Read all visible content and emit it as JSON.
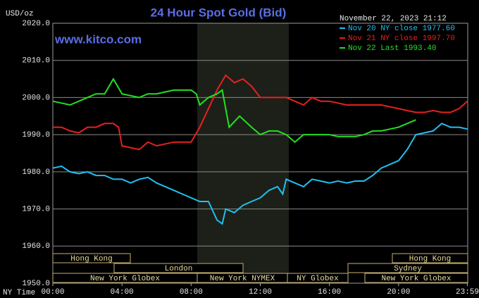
{
  "chart_data": {
    "type": "line",
    "title": "24 Hour Spot Gold (Bid)",
    "y_label": "USD/oz",
    "x_label": "NY Time",
    "watermark": "www.kitco.com",
    "timestamp": "November 22, 2023 21:12",
    "xlim": [
      0,
      24
    ],
    "ylim": [
      1950,
      2020
    ],
    "xticks": [
      {
        "value": 0,
        "label": "00:00"
      },
      {
        "value": 4,
        "label": "04:00"
      },
      {
        "value": 8,
        "label": "08:00"
      },
      {
        "value": 12,
        "label": "12:00"
      },
      {
        "value": 16,
        "label": "16:00"
      },
      {
        "value": 20,
        "label": "20:00"
      },
      {
        "value": 23.98,
        "label": "23:59"
      }
    ],
    "yticks": [
      {
        "value": 1950,
        "label": "1950.0"
      },
      {
        "value": 1960,
        "label": "1960.0"
      },
      {
        "value": 1970,
        "label": "1970.0"
      },
      {
        "value": 1980,
        "label": "1980.0"
      },
      {
        "value": 1990,
        "label": "1990.0"
      },
      {
        "value": 2000,
        "label": "2000.0"
      },
      {
        "value": 2010,
        "label": "2010.0"
      },
      {
        "value": 2020,
        "label": "2020.0"
      }
    ],
    "grid": true,
    "series": [
      {
        "name": "Nov 20 NY close 1977.60",
        "color": "#22bff0",
        "x": [
          0,
          0.5,
          1,
          1.5,
          2,
          2.5,
          3,
          3.5,
          4,
          4.5,
          5,
          5.5,
          6,
          6.5,
          7,
          7.5,
          8,
          8.5,
          9,
          9.5,
          9.8,
          10,
          10.5,
          11,
          11.5,
          12,
          12.5,
          13,
          13.3,
          13.5,
          14,
          14.5,
          15,
          15.5,
          16,
          16.5,
          17,
          17.5,
          18,
          18.5,
          19,
          19.5,
          20,
          20.5,
          21,
          21.5,
          22,
          22.5,
          23,
          23.5,
          23.98
        ],
        "values": [
          1981,
          1981.5,
          1980,
          1979.5,
          1980,
          1979,
          1979,
          1978,
          1978,
          1977,
          1978,
          1978.5,
          1977,
          1976,
          1975,
          1974,
          1973,
          1972,
          1972,
          1967,
          1966,
          1970,
          1969,
          1971,
          1972,
          1973,
          1975,
          1976,
          1974,
          1978,
          1977,
          1976,
          1978,
          1977.5,
          1977,
          1977.5,
          1977,
          1977.5,
          1977.5,
          1979,
          1981,
          1982,
          1983,
          1986,
          1990,
          1990.5,
          1991,
          1993,
          1992,
          1992,
          1991.5
        ]
      },
      {
        "name": "Nov 21 NY close 1997.70",
        "color": "#e62020",
        "x": [
          0,
          0.5,
          1,
          1.5,
          2,
          2.5,
          3,
          3.5,
          3.8,
          4,
          4.5,
          5,
          5.5,
          6,
          6.5,
          7,
          7.5,
          8,
          8.5,
          9,
          9.5,
          10,
          10.5,
          11,
          11.5,
          12,
          12.5,
          13,
          13.5,
          14,
          14.5,
          15,
          15.5,
          16,
          16.5,
          17,
          17.5,
          18,
          18.5,
          19,
          19.5,
          20,
          20.5,
          21,
          21.5,
          22,
          22.5,
          23,
          23.5,
          23.98
        ],
        "values": [
          1992,
          1992,
          1991,
          1990.5,
          1992,
          1992,
          1993,
          1993,
          1992,
          1987,
          1986.5,
          1986,
          1988,
          1987,
          1987.5,
          1988,
          1988,
          1988,
          1992,
          1997,
          2002,
          2006,
          2004,
          2005,
          2003,
          2000,
          2000,
          2000,
          2000,
          1999,
          1998,
          2000,
          1999,
          1999,
          1998.5,
          1998,
          1998,
          1998,
          1998,
          1998,
          1997.5,
          1997,
          1996.5,
          1996,
          1996,
          1996.5,
          1996,
          1996,
          1997,
          1999
        ]
      },
      {
        "name": "Nov 22 Last 1993.40",
        "color": "#22e022",
        "x": [
          0,
          0.5,
          1,
          1.5,
          2,
          2.5,
          3,
          3.5,
          4,
          4.5,
          5,
          5.5,
          6,
          6.5,
          7,
          7.5,
          8,
          8.3,
          8.5,
          9,
          9.5,
          9.8,
          10.2,
          10.8,
          11.5,
          12,
          12.5,
          13,
          13.5,
          14,
          14.5,
          15,
          15.5,
          16,
          16.5,
          17,
          17.5,
          18,
          18.5,
          19,
          19.5,
          20,
          20.5,
          21
        ],
        "values": [
          1999,
          1998.5,
          1998,
          1999,
          2000,
          2001,
          2001,
          2005,
          2001,
          2000.5,
          2000,
          2001,
          2001,
          2001.5,
          2002,
          2002,
          2002,
          2001,
          1998,
          2000,
          2001,
          2002,
          1992,
          1995,
          1992,
          1990,
          1991,
          1991,
          1990,
          1988,
          1990,
          1990,
          1990,
          1990,
          1989.5,
          1989.5,
          1989.5,
          1990,
          1991,
          1991,
          1991.5,
          1992,
          1993,
          1994
        ]
      }
    ],
    "sessions": [
      {
        "label": "Hong Kong"
      },
      {
        "label": "Hong Kong"
      },
      {
        "label": "London"
      },
      {
        "label": "Sydney"
      },
      {
        "label": "New York Globex"
      },
      {
        "label": "New York NYMEX"
      },
      {
        "label": "NY Globex"
      },
      {
        "label": "New York Globex"
      }
    ]
  }
}
